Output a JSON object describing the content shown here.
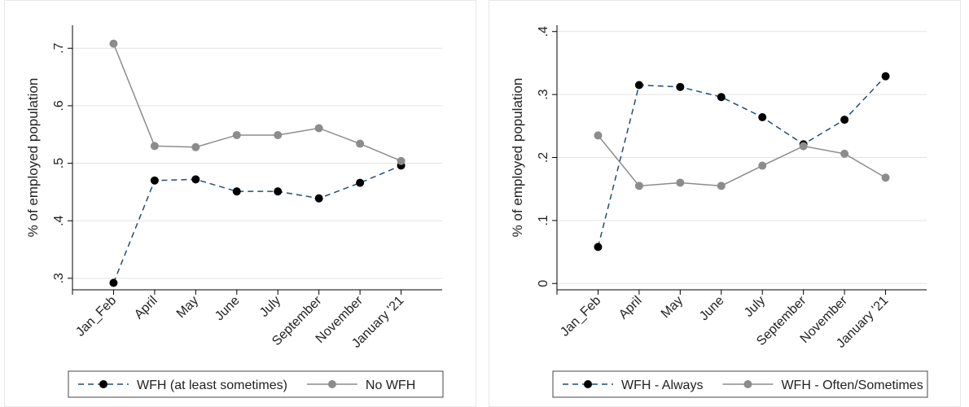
{
  "chart_data": [
    {
      "type": "line",
      "title": "",
      "xlabel": "",
      "ylabel": "% of employed population",
      "categories": [
        "Jan_Feb",
        "April",
        "May",
        "June",
        "July",
        "September",
        "November",
        "January '21"
      ],
      "ylim": [
        0.28,
        0.74
      ],
      "yticks": [
        0.3,
        0.4,
        0.5,
        0.6,
        0.7
      ],
      "ytick_labels": [
        ".3",
        ".4",
        ".5",
        ".6",
        ".7"
      ],
      "grid": true,
      "legend_position": "bottom",
      "series": [
        {
          "name": "WFH (at least sometimes)",
          "values": [
            0.292,
            0.47,
            0.472,
            0.451,
            0.451,
            0.439,
            0.466,
            0.496
          ],
          "color": "#1f4e79",
          "dash": true,
          "marker_color": "#000000"
        },
        {
          "name": "No WFH",
          "values": [
            0.708,
            0.53,
            0.528,
            0.549,
            0.549,
            0.561,
            0.534,
            0.504
          ],
          "color": "#8c8c8c",
          "dash": false,
          "marker_color": "#8c8c8c"
        }
      ]
    },
    {
      "type": "line",
      "title": "",
      "xlabel": "",
      "ylabel": "% of employed population",
      "categories": [
        "Jan_Feb",
        "April",
        "May",
        "June",
        "July",
        "September",
        "November",
        "January '21"
      ],
      "ylim": [
        -0.01,
        0.41
      ],
      "yticks": [
        0,
        0.1,
        0.2,
        0.3,
        0.4
      ],
      "ytick_labels": [
        "0",
        ".1",
        ".2",
        ".3",
        ".4"
      ],
      "grid": true,
      "legend_position": "bottom",
      "series": [
        {
          "name": "WFH - Always",
          "values": [
            0.058,
            0.315,
            0.312,
            0.296,
            0.264,
            0.221,
            0.26,
            0.329
          ],
          "color": "#1f4e79",
          "dash": true,
          "marker_color": "#000000"
        },
        {
          "name": "WFH - Often/Sometimes",
          "values": [
            0.235,
            0.155,
            0.16,
            0.155,
            0.187,
            0.218,
            0.206,
            0.168
          ],
          "color": "#8c8c8c",
          "dash": false,
          "marker_color": "#8c8c8c"
        }
      ]
    }
  ]
}
